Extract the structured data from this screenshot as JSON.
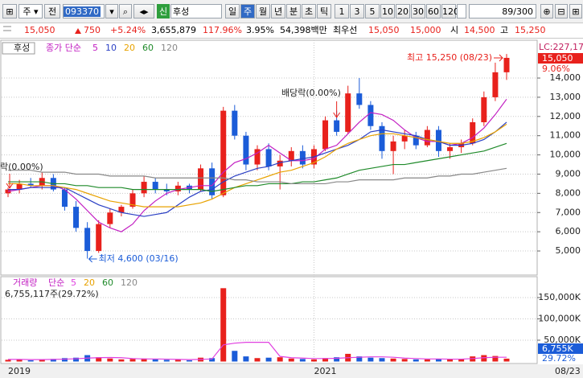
{
  "toolbar": {
    "period_type": "주",
    "prefix": "전",
    "code": "093370",
    "badge": "신",
    "name": "후성",
    "periods": [
      "일",
      "주",
      "월",
      "년",
      "분",
      "초",
      "틱"
    ],
    "units": [
      "1",
      "3",
      "5",
      "10",
      "20",
      "30",
      "60",
      "120"
    ],
    "count": "89/300"
  },
  "quote": {
    "price": "15,050",
    "change": "750",
    "change_rate": "+5.24%",
    "volume": "3,655,879",
    "volume_ratio": "117.96%",
    "turnover": "3.95%",
    "amount": "54,398백만",
    "best_label": "최우선",
    "ask": "15,050",
    "bid": "15,000",
    "open_label": "시",
    "open": "14,500",
    "high_label": "고",
    "high": "15,250"
  },
  "chart_data": [
    {
      "type": "candlestick",
      "title": "후성",
      "legend_label": "종가 단순",
      "up_color": "#e8211c",
      "down_color": "#1b5cd8",
      "open": [
        8000,
        8200,
        8500,
        8400,
        8800,
        8200,
        7300,
        6200,
        5000,
        6400,
        7000,
        7300,
        8000,
        8600,
        8200,
        8100,
        8400,
        8200,
        9300,
        7900,
        12300,
        11000,
        9500,
        10300,
        9400,
        9700,
        10200,
        9500,
        10300,
        11800,
        11200,
        13200,
        12600,
        11500,
        10200,
        10700,
        11000,
        10500,
        11300,
        10200,
        10400,
        10600,
        11700,
        13000,
        14300
      ],
      "high": [
        8300,
        8700,
        8800,
        9100,
        9000,
        8300,
        7600,
        6500,
        6600,
        7200,
        7400,
        8200,
        8900,
        8800,
        8500,
        8600,
        8500,
        9500,
        9600,
        12500,
        12600,
        11200,
        10500,
        10600,
        10000,
        10400,
        10500,
        10500,
        12000,
        12300,
        13600,
        14000,
        12800,
        11700,
        11000,
        11300,
        11200,
        11500,
        11500,
        10600,
        10800,
        11900,
        13300,
        14800,
        15250
      ],
      "low": [
        7800,
        8000,
        8300,
        8200,
        8100,
        7100,
        6000,
        4600,
        4900,
        6200,
        6800,
        7200,
        7800,
        8000,
        7900,
        7900,
        8000,
        8100,
        7700,
        7800,
        10800,
        9200,
        9200,
        9200,
        8200,
        9400,
        9300,
        9300,
        10200,
        11000,
        11100,
        12400,
        11300,
        9800,
        9000,
        10300,
        10300,
        10400,
        9900,
        9800,
        10100,
        10500,
        11500,
        12800,
        13900
      ],
      "close": [
        8200,
        8500,
        8400,
        8800,
        8200,
        7300,
        6200,
        5000,
        6400,
        7000,
        7300,
        8000,
        8600,
        8200,
        8100,
        8400,
        8200,
        9300,
        7900,
        12300,
        11000,
        9500,
        10300,
        9400,
        9700,
        10200,
        9500,
        10300,
        11800,
        11200,
        13200,
        12600,
        11500,
        10200,
        10700,
        11000,
        10500,
        11300,
        10200,
        10400,
        10600,
        11700,
        13000,
        14300,
        15050
      ],
      "series": [
        {
          "name": "5",
          "color": "#c21fc2",
          "values": [
            8100,
            8200,
            8300,
            8400,
            8400,
            8200,
            7700,
            7100,
            6500,
            6200,
            6000,
            6400,
            7100,
            7600,
            8000,
            8200,
            8300,
            8400,
            8400,
            9100,
            9600,
            9800,
            10100,
            10500,
            10100,
            9700,
            9700,
            9800,
            10300,
            10500,
            11100,
            11700,
            12200,
            12100,
            11800,
            11300,
            10900,
            10700,
            10700,
            10500,
            10600,
            10900,
            11400,
            12100,
            12900
          ]
        },
        {
          "name": "10",
          "color": "#2a3fc4",
          "values": [
            8200,
            8200,
            8300,
            8300,
            8300,
            8300,
            8000,
            7700,
            7400,
            7200,
            7000,
            6900,
            6800,
            6900,
            7000,
            7400,
            7800,
            8100,
            8200,
            8600,
            8900,
            9100,
            9300,
            9400,
            9600,
            9700,
            9800,
            9900,
            10100,
            10300,
            10500,
            10800,
            11200,
            11300,
            11200,
            11100,
            11000,
            10800,
            10700,
            10500,
            10500,
            10600,
            10800,
            11200,
            11700
          ]
        },
        {
          "name": "20",
          "color": "#e8a200",
          "values": [
            8500,
            8500,
            8400,
            8400,
            8400,
            8300,
            8200,
            8000,
            7800,
            7600,
            7500,
            7400,
            7300,
            7300,
            7300,
            7300,
            7400,
            7500,
            7700,
            8000,
            8300,
            8500,
            8700,
            8900,
            9100,
            9200,
            9400,
            9600,
            9900,
            10300,
            10600,
            10800,
            11000,
            11100,
            11100,
            11000,
            10900,
            10800,
            10700,
            10600,
            10600,
            10700,
            10900,
            11200,
            11600
          ]
        },
        {
          "name": "60",
          "color": "#1f8a2a",
          "values": [
            8600,
            8600,
            8600,
            8600,
            8500,
            8500,
            8400,
            8400,
            8300,
            8300,
            8300,
            8200,
            8200,
            8200,
            8200,
            8200,
            8200,
            8200,
            8100,
            8200,
            8300,
            8400,
            8400,
            8500,
            8500,
            8500,
            8600,
            8600,
            8700,
            8800,
            9000,
            9200,
            9300,
            9400,
            9500,
            9500,
            9600,
            9700,
            9800,
            9900,
            10000,
            10100,
            10200,
            10400,
            10600
          ]
        },
        {
          "name": "120",
          "color": "#888888",
          "values": [
            9200,
            9200,
            9200,
            9100,
            9100,
            9100,
            9000,
            9000,
            9000,
            8900,
            8900,
            8900,
            8900,
            8800,
            8800,
            8800,
            8800,
            8800,
            8800,
            8800,
            8700,
            8700,
            8600,
            8600,
            8600,
            8500,
            8500,
            8500,
            8500,
            8600,
            8600,
            8700,
            8700,
            8700,
            8700,
            8800,
            8800,
            8800,
            8900,
            8900,
            9000,
            9000,
            9100,
            9200,
            9300
          ]
        }
      ],
      "ylim": [
        3830,
        15550
      ],
      "yticks": [
        {
          "value": 5000,
          "label": "5,000"
        },
        {
          "value": 6000,
          "label": "6,000"
        },
        {
          "value": 7000,
          "label": "7,000"
        },
        {
          "value": 8000,
          "label": "8,000"
        },
        {
          "value": 9000,
          "label": "9,000"
        },
        {
          "value": 10000,
          "label": "10,000"
        },
        {
          "value": 11000,
          "label": "11,000"
        },
        {
          "value": 12000,
          "label": "12,000"
        },
        {
          "value": 13000,
          "label": "13,000"
        },
        {
          "value": 14000,
          "label": "14,000"
        }
      ],
      "annotations": {
        "high": "최고 15,250 (08/23)",
        "low": "최저 4,600 (03/16)",
        "dividend": "배당락(0.00%)",
        "dividend_left": "락(0.00%)"
      },
      "side_labels": {
        "lc": "LC:227,17",
        "price": "15,050",
        "rate": "9.06%"
      }
    },
    {
      "type": "bar",
      "title": "거래량",
      "legend_label": "단순",
      "values": [
        4000,
        5000,
        3000,
        4000,
        6000,
        8000,
        9000,
        15000,
        10000,
        7000,
        5000,
        6000,
        7000,
        5000,
        4000,
        4000,
        3000,
        9000,
        8000,
        172000,
        25000,
        12000,
        8000,
        9000,
        10000,
        7000,
        6000,
        5000,
        8000,
        10000,
        18000,
        12000,
        9000,
        8000,
        7000,
        6000,
        5000,
        5000,
        6000,
        5000,
        6000,
        12000,
        15000,
        13000,
        6755.117
      ],
      "series": [
        {
          "name": "5",
          "color": "#e040e0",
          "values": [
            5000,
            5000,
            4500,
            4500,
            5000,
            5500,
            6500,
            8000,
            9000,
            9500,
            9000,
            7000,
            6000,
            6000,
            5500,
            5000,
            4500,
            5000,
            6000,
            39000,
            43000,
            45000,
            45000,
            45000,
            12000,
            9000,
            8000,
            7000,
            7000,
            7500,
            9000,
            10000,
            11000,
            11000,
            10000,
            8000,
            7000,
            6000,
            6000,
            5500,
            5500,
            7000,
            9000,
            10000,
            10000
          ]
        }
      ],
      "legend": [
        {
          "name": "20",
          "color": "#e8a200"
        },
        {
          "name": "60",
          "color": "#1f8a2a"
        },
        {
          "name": "120",
          "color": "#888888"
        }
      ],
      "ylim": [
        0,
        191500
      ],
      "yticks": [
        {
          "value": 50000,
          "label": "50,000K"
        },
        {
          "value": 100000,
          "label": "100,000K"
        },
        {
          "value": 150000,
          "label": "150,000K"
        }
      ],
      "value_label": "6,755,117주(29.72%)",
      "side_labels": {
        "volume": "6,755K",
        "rate": "29.72%"
      },
      "categories": [
        "2019",
        null,
        null,
        null,
        null,
        null,
        null,
        null,
        null,
        null,
        null,
        null,
        null,
        null,
        null,
        null,
        null,
        null,
        null,
        null,
        null,
        null,
        null,
        null,
        null,
        null,
        null,
        "2021",
        null,
        null,
        null,
        null,
        null,
        null,
        null,
        null,
        null,
        null,
        null,
        null,
        null,
        null,
        null,
        null,
        "08/23"
      ]
    }
  ]
}
